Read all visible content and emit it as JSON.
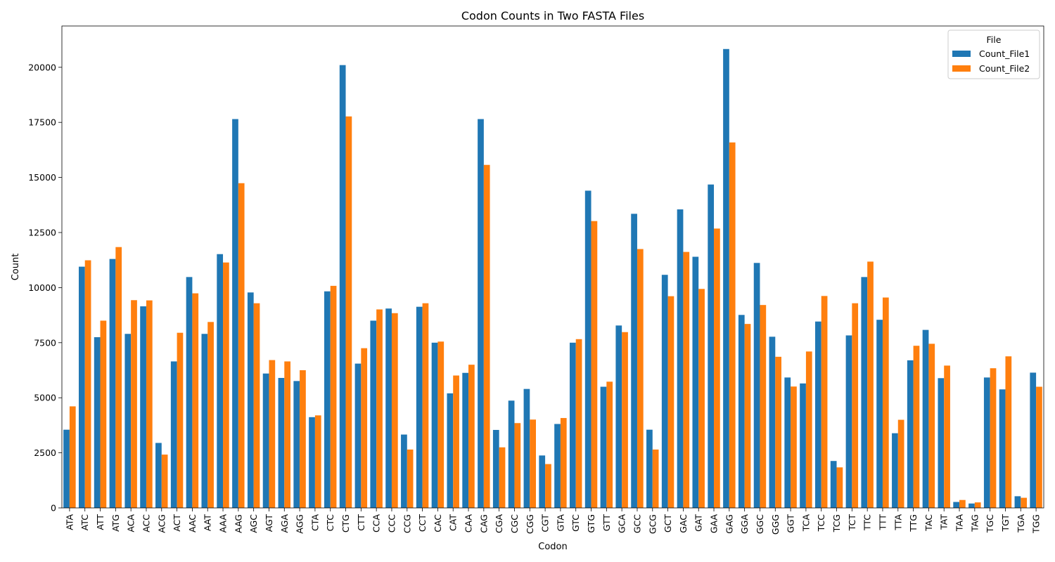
{
  "chart_data": {
    "type": "bar",
    "title": "Codon Counts in Two FASTA Files",
    "xlabel": "Codon",
    "ylabel": "Count",
    "ylim": [
      0,
      21875
    ],
    "yticks": [
      0,
      2500,
      5000,
      7500,
      10000,
      12500,
      15000,
      17500,
      20000
    ],
    "grid": false,
    "legend": {
      "title": "File",
      "placement": "top-right"
    },
    "categories": [
      "ATA",
      "ATC",
      "ATT",
      "ATG",
      "ACA",
      "ACC",
      "ACG",
      "ACT",
      "AAC",
      "AAT",
      "AAA",
      "AAG",
      "AGC",
      "AGT",
      "AGA",
      "AGG",
      "CTA",
      "CTC",
      "CTG",
      "CTT",
      "CCA",
      "CCC",
      "CCG",
      "CCT",
      "CAC",
      "CAT",
      "CAA",
      "CAG",
      "CGA",
      "CGC",
      "CGG",
      "CGT",
      "GTA",
      "GTC",
      "GTG",
      "GTT",
      "GCA",
      "GCC",
      "GCG",
      "GCT",
      "GAC",
      "GAT",
      "GAA",
      "GAG",
      "GGA",
      "GGC",
      "GGG",
      "GGT",
      "TCA",
      "TCC",
      "TCG",
      "TCT",
      "TTC",
      "TTT",
      "TTA",
      "TTG",
      "TAC",
      "TAT",
      "TAA",
      "TAG",
      "TGC",
      "TGT",
      "TGA",
      "TGG"
    ],
    "series": [
      {
        "name": "Count_File1",
        "color": "#1f77b4",
        "values": [
          3550,
          10950,
          7750,
          11300,
          7900,
          9150,
          2950,
          6650,
          10480,
          7900,
          11520,
          17650,
          9780,
          6100,
          5900,
          5760,
          4120,
          9830,
          20100,
          6550,
          8500,
          9050,
          3330,
          9130,
          7500,
          5200,
          6130,
          17650,
          3540,
          4870,
          5400,
          2380,
          3810,
          7500,
          14400,
          5500,
          8280,
          13350,
          3550,
          10580,
          13550,
          11400,
          14680,
          20830,
          8760,
          11120,
          7770,
          5920,
          5650,
          8460,
          2130,
          7830,
          10480,
          8540,
          3390,
          6700,
          8080,
          5890,
          270,
          200,
          5920,
          5380,
          530,
          6140
        ]
      },
      {
        "name": "Count_File2",
        "color": "#ff7f0e",
        "values": [
          4610,
          11240,
          8500,
          11840,
          9430,
          9420,
          2420,
          7950,
          9740,
          8440,
          11140,
          14740,
          9290,
          6710,
          6650,
          6250,
          4200,
          10080,
          17770,
          7250,
          9010,
          8840,
          2650,
          9290,
          7550,
          6010,
          6500,
          15570,
          2750,
          3850,
          4010,
          1990,
          4080,
          7660,
          13020,
          5730,
          7980,
          11750,
          2650,
          9610,
          11620,
          9940,
          12680,
          16590,
          8350,
          9210,
          6860,
          5510,
          7100,
          9620,
          1840,
          9290,
          11180,
          9550,
          4000,
          7360,
          7450,
          6460,
          360,
          250,
          6340,
          6880,
          460,
          5500
        ]
      }
    ]
  }
}
